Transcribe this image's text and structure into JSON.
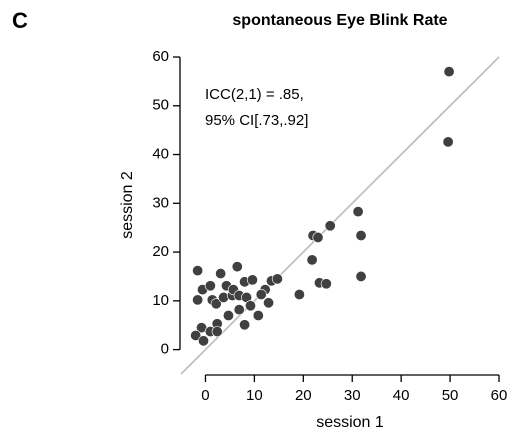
{
  "chart_data": {
    "type": "scatter",
    "panel_label": "C",
    "title": "spontaneous Eye Blink Rate",
    "annotation": [
      "ICC(2,1) = .85,",
      "95% CI[.73,.92]"
    ],
    "xlabel": "session 1",
    "ylabel": "session 2",
    "xlim": [
      -5,
      60
    ],
    "ylim": [
      -5,
      60
    ],
    "xticks": [
      0,
      10,
      20,
      30,
      40,
      50,
      60
    ],
    "yticks": [
      0,
      10,
      20,
      30,
      40,
      50,
      60
    ],
    "color": "#404040",
    "identity_line_color": "#c0c0c0",
    "x": [
      49.8,
      49.6,
      31.2,
      31.8,
      31.8,
      25.5,
      22,
      23,
      21.8,
      23.3,
      24.7,
      19.2,
      -1.6,
      -1.6,
      -0.6,
      -0.8,
      -2,
      -0.4,
      1,
      1.4,
      1,
      2.2,
      2.4,
      2.4,
      3.1,
      3.7,
      4.7,
      4.3,
      5.5,
      5.7,
      6.5,
      6.9,
      6.9,
      8,
      8,
      8.4,
      9.6,
      9.2,
      13.5,
      14.7,
      12.9,
      12.2,
      11.4,
      10.8
    ],
    "y": [
      57,
      42.6,
      28.3,
      23.4,
      15,
      25.4,
      23.4,
      23,
      18.4,
      13.7,
      13.5,
      11.3,
      16.2,
      10.2,
      12.3,
      4.5,
      2.9,
      1.8,
      13.1,
      10.2,
      3.7,
      9.4,
      5.3,
      3.7,
      15.6,
      10.7,
      7,
      13.1,
      11.1,
      12.3,
      17,
      11.1,
      8.2,
      5.1,
      13.9,
      10.7,
      14.3,
      9,
      14.1,
      14.5,
      9.6,
      12.3,
      11.3,
      7
    ]
  }
}
